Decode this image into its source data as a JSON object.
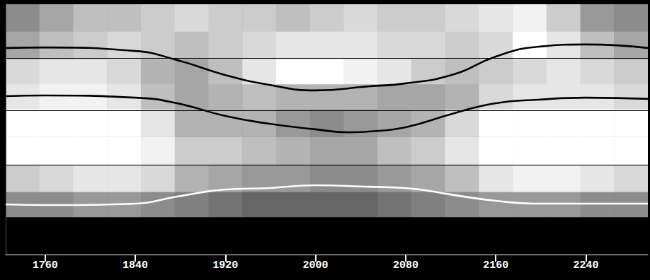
{
  "chart_data": {
    "type": "heatmap",
    "xlim": [
      1725,
      2295
    ],
    "xticks": [
      1760,
      1840,
      1920,
      2000,
      2080,
      2160,
      2240
    ],
    "ylim": [
      0,
      100
    ],
    "yticks": [
      35.8,
      57.5,
      78.3,
      100
    ],
    "grid": true,
    "tick_labels": "x",
    "x_bins": [
      1725,
      1755,
      1785,
      1815,
      1845,
      1875,
      1905,
      1935,
      1965,
      1995,
      2025,
      2055,
      2085,
      2115,
      2145,
      2175,
      2205,
      2235,
      2265,
      2295
    ],
    "y_bins": [
      0,
      15,
      25,
      36,
      47,
      58,
      68,
      78,
      89,
      100
    ],
    "cell_range": [
      0,
      1
    ],
    "cells": [
      [
        1,
        1,
        1,
        1,
        1,
        1,
        1,
        1,
        1,
        1,
        1,
        1,
        1,
        1,
        1,
        1,
        1,
        1,
        1
      ],
      [
        0.45,
        0.45,
        0.4,
        0.4,
        0.45,
        0.5,
        0.55,
        0.6,
        0.6,
        0.6,
        0.6,
        0.55,
        0.5,
        0.45,
        0.4,
        0.4,
        0.4,
        0.45,
        0.45
      ],
      [
        0.2,
        0.15,
        0.1,
        0.1,
        0.15,
        0.3,
        0.35,
        0.4,
        0.4,
        0.45,
        0.45,
        0.4,
        0.35,
        0.25,
        0.1,
        0.05,
        0.05,
        0.1,
        0.15
      ],
      [
        0,
        0,
        0,
        0,
        0.05,
        0.2,
        0.2,
        0.25,
        0.3,
        0.35,
        0.35,
        0.25,
        0.2,
        0.1,
        0,
        0,
        0,
        0,
        0
      ],
      [
        0,
        0,
        0,
        0,
        0.1,
        0.3,
        0.3,
        0.3,
        0.4,
        0.45,
        0.4,
        0.35,
        0.3,
        0.15,
        0,
        0,
        0,
        0,
        0
      ],
      [
        0.1,
        0.05,
        0.05,
        0.1,
        0.25,
        0.35,
        0.3,
        0.25,
        0.3,
        0.3,
        0.3,
        0.35,
        0.35,
        0.3,
        0.15,
        0.1,
        0.1,
        0.1,
        0.15
      ],
      [
        0.15,
        0.1,
        0.1,
        0.15,
        0.3,
        0.35,
        0.25,
        0.1,
        0,
        0,
        0.05,
        0.1,
        0.2,
        0.25,
        0.2,
        0.15,
        0.1,
        0.15,
        0.2
      ],
      [
        0.35,
        0.25,
        0.2,
        0.15,
        0.2,
        0.25,
        0.2,
        0.15,
        0.1,
        0.1,
        0.1,
        0.15,
        0.15,
        0.2,
        0.15,
        0,
        0.1,
        0.25,
        0.35
      ],
      [
        0.45,
        0.35,
        0.25,
        0.25,
        0.2,
        0.15,
        0.2,
        0.2,
        0.25,
        0.2,
        0.15,
        0.2,
        0.2,
        0.15,
        0.1,
        0.05,
        0.2,
        0.4,
        0.45
      ]
    ],
    "series": [
      {
        "type": "line",
        "color": "#000000",
        "x": [
          1725,
          1760,
          1840,
          1877,
          1920,
          1959,
          2000,
          2047,
          2080,
          2123,
          2160,
          2198,
          2240,
          2295
        ],
        "values": [
          82.3,
          82.5,
          81.1,
          77.5,
          71.5,
          67.6,
          65.4,
          67.0,
          68.2,
          71.8,
          78.9,
          82.8,
          83.7,
          82.3
        ]
      },
      {
        "type": "line",
        "color": "#000000",
        "x": [
          1725,
          1760,
          1840,
          1877,
          1920,
          1959,
          2000,
          2029,
          2047,
          2080,
          2123,
          2160,
          2198,
          2240,
          2295
        ],
        "values": [
          63.1,
          63.4,
          62.5,
          60.3,
          55.2,
          52.1,
          49.9,
          48.7,
          49.0,
          50.7,
          56.3,
          60.3,
          61.7,
          62.5,
          62.0
        ]
      },
      {
        "type": "line",
        "color": "#ffffff",
        "x": [
          1725,
          1760,
          1840,
          1877,
          1920,
          1959,
          2000,
          2047,
          2080,
          2123,
          2160,
          2198,
          2240,
          2295
        ],
        "values": [
          20.0,
          19.7,
          20.3,
          23.1,
          25.9,
          26.5,
          27.6,
          27.0,
          26.5,
          23.7,
          21.4,
          20.3,
          20.3,
          20.3
        ]
      }
    ]
  }
}
